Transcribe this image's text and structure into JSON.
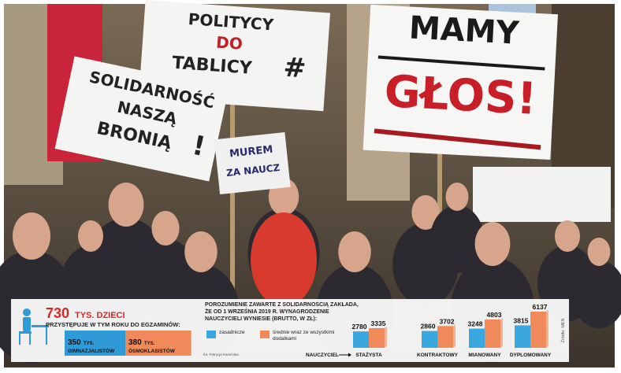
{
  "photo": {
    "signs": [
      {
        "lines": [
          "POLITYCY",
          "DO",
          "TABLICY"
        ]
      },
      {
        "lines": [
          "SOLIDARNOŚĆ",
          "NASZĄ",
          "BRONIĄ"
        ]
      },
      {
        "lines": [
          "MAMY",
          "GŁOS!"
        ]
      },
      {
        "lines": [
          "MUREM",
          "ZA NAUCZ"
        ]
      }
    ],
    "credit": "fot. Patrycja Kamińska"
  },
  "exams": {
    "total": 730,
    "total_unit": "TYS. DZIECI",
    "caption": "PRZYSTĘPUJE W TYM ROKU DO EGZAMINÓW:",
    "groups": [
      {
        "value": 350,
        "unit": "TYS.",
        "label": "GIMNAZJALISTÓW",
        "color": "#2f9ad6"
      },
      {
        "value": 380,
        "unit": "TYS.",
        "label": "ÓSMOKLASISTÓW",
        "color": "#f08a5a"
      }
    ]
  },
  "chart_data": {
    "type": "bar",
    "title": "POROZUMIENIE ZAWARTE Z SOLIDARNOŚCIĄ ZAKŁADA, ŻE OD 1 WRZEŚNIA 2019 R. WYNAGRODZENIE NAUCZYCIELI WYNIESIE (BRUTTO, W ZŁ):",
    "category_prefix": "NAUCZYCIEL",
    "categories": [
      "STAŻYSTA",
      "KONTRAKTOWY",
      "MIANOWANY",
      "DYPLOMOWANY"
    ],
    "series": [
      {
        "name": "zasadnicze",
        "color": "#3aa8de",
        "values": [
          2780,
          2860,
          3248,
          3815
        ]
      },
      {
        "name": "średnie wraz ze wszystkimi dodatkami",
        "color": "#f08a5a",
        "values": [
          3335,
          3702,
          4803,
          6137
        ]
      }
    ],
    "source": "Źródło: MEN"
  }
}
